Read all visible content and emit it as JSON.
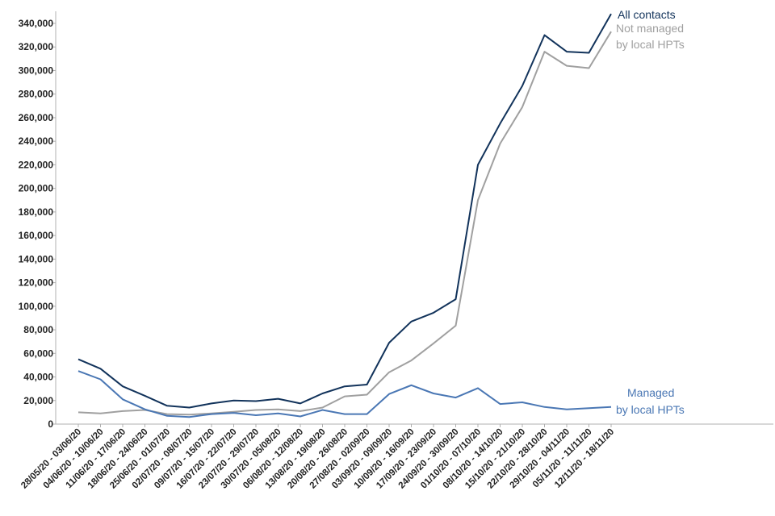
{
  "chart_data": {
    "type": "line",
    "title": "",
    "xlabel": "",
    "ylabel": "",
    "ylim": [
      0,
      340000
    ],
    "yticks": [
      0,
      20000,
      40000,
      60000,
      80000,
      100000,
      120000,
      140000,
      160000,
      180000,
      200000,
      220000,
      240000,
      260000,
      280000,
      300000,
      320000,
      340000
    ],
    "ytick_labels": [
      "0",
      "20,000",
      "40,000",
      "60,000",
      "80,000",
      "100,000",
      "120,000",
      "140,000",
      "160,000",
      "180,000",
      "200,000",
      "220,000",
      "240,000",
      "260,000",
      "280,000",
      "300,000",
      "320,000",
      "340,000"
    ],
    "grid": false,
    "legend": "inline-right",
    "categories": [
      "28/05/20 - 03/06/20",
      "04/06/20 - 10/06/20",
      "11/06/20 - 17/06/20",
      "18/06/20 - 24/06/20",
      "25/06/20 - 01/07/20",
      "02/07/20 - 08/07/20",
      "09/07/20 - 15/07/20",
      "16/07/20 - 22/07/20",
      "23/07/20 - 29/07/20",
      "30/07/20 - 05/08/20",
      "06/08/20 - 12/08/20",
      "13/08/20 - 19/08/20",
      "20/08/20 - 26/08/20",
      "27/08/20 - 02/09/20",
      "03/09/20 - 09/09/20",
      "10/09/20 - 16/09/20",
      "17/09/20 - 23/09/20",
      "24/09/20 - 30/09/20",
      "01/10/20 - 07/10/20",
      "08/10/20 - 14/10/20",
      "15/10/20 - 21/10/20",
      "22/10/20 - 28/10/20",
      "29/10/20 - 04/11/20",
      "05/11/20 - 11/11/20",
      "12/11/20 - 18/11/20"
    ],
    "series": [
      {
        "name": "All contacts",
        "label_lines": [
          "All contacts"
        ],
        "color": "#12335b",
        "values": [
          55000,
          47000,
          32000,
          24000,
          15500,
          14000,
          17500,
          20000,
          19500,
          21500,
          17500,
          26000,
          32000,
          33500,
          69000,
          87000,
          94500,
          106000,
          220000,
          255000,
          287000,
          330000,
          316000,
          315000,
          348000
        ]
      },
      {
        "name": "Not managed by local HPTs",
        "label_lines": [
          "Not managed",
          "by local HPTs"
        ],
        "color": "#a0a0a0",
        "values": [
          10000,
          9000,
          11000,
          12000,
          8500,
          8000,
          9000,
          10500,
          12000,
          12500,
          11000,
          14000,
          23500,
          25000,
          44000,
          54000,
          68500,
          83500,
          190000,
          238000,
          269000,
          316000,
          304000,
          302000,
          333000
        ]
      },
      {
        "name": "Managed by local HPTs",
        "label_lines": [
          "Managed",
          "by local HPTs"
        ],
        "color": "#4a77b4",
        "values": [
          45000,
          38000,
          21000,
          12500,
          7000,
          6000,
          8500,
          9500,
          7500,
          9000,
          6500,
          12000,
          8500,
          8500,
          25500,
          33000,
          26000,
          22500,
          30500,
          17000,
          18500,
          14500,
          12500,
          13500,
          14500
        ]
      }
    ]
  }
}
